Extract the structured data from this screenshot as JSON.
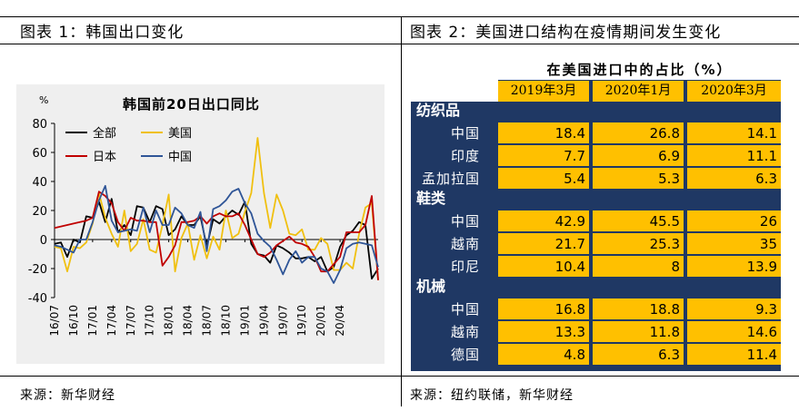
{
  "left_panel": {
    "header": "图表 1：韩国出口变化",
    "source": "来源：新华财经"
  },
  "right_panel": {
    "header": "图表 2：美国进口结构在疫情期间发生变化",
    "source": "来源：纽约联储，新华财经"
  },
  "chart_data": {
    "type": "line",
    "title": "韩国前20日出口同比",
    "yunit": "%",
    "ylim": [
      -40,
      80
    ],
    "yticks": [
      -40,
      -20,
      0,
      20,
      40,
      60,
      80
    ],
    "xtick_labels": [
      "16/07",
      "16/10",
      "17/01",
      "17/04",
      "17/07",
      "17/10",
      "18/01",
      "18/04",
      "18/07",
      "18/10",
      "19/01",
      "19/04",
      "19/07",
      "19/10",
      "20/01",
      "20/04"
    ],
    "legend_placement": "top-left",
    "grid": false,
    "x_start": "2016-07",
    "x_end": "2020-05",
    "series": [
      {
        "name": "全部",
        "color": "#000000",
        "values": [
          -3,
          -2,
          -12,
          0,
          -2,
          16,
          15,
          26,
          12,
          28,
          5,
          10,
          3,
          23,
          22,
          12,
          23,
          21,
          3,
          7,
          16,
          10,
          10,
          16,
          -5,
          14,
          11,
          16,
          20,
          17,
          26,
          -3,
          -10,
          -11,
          -16,
          -4,
          -6,
          -9,
          -13,
          -13,
          -12,
          -15,
          -12,
          -22,
          -19,
          -5,
          3,
          6,
          12,
          10,
          -27,
          -20
        ]
      },
      {
        "name": "美国",
        "color": "#f0c010",
        "values": [
          -5,
          -6,
          -22,
          -5,
          -6,
          -2,
          11,
          32,
          15,
          4,
          -5,
          20,
          -8,
          -3,
          14,
          -7,
          -9,
          10,
          31,
          -22,
          1,
          11,
          -14,
          3,
          -13,
          2,
          -7,
          20,
          1,
          4,
          19,
          32,
          70,
          32,
          8,
          31,
          20,
          4,
          3,
          7,
          -7,
          -7,
          1,
          -3,
          -21,
          -21,
          -16,
          -20,
          4,
          22,
          25,
          -28
        ]
      },
      {
        "name": "日本",
        "color": "#c00000",
        "values": [
          8,
          9,
          10,
          11,
          12,
          13,
          15,
          33,
          30,
          25,
          12,
          6,
          15,
          13,
          13,
          12,
          12,
          -18,
          -12,
          -4,
          12,
          12,
          13,
          16,
          11,
          16,
          18,
          16,
          16,
          18,
          10,
          0,
          -10,
          -12,
          -9,
          -4,
          -1,
          2,
          -2,
          -3,
          -5,
          -12,
          -22,
          -22,
          -17,
          -12,
          5,
          5,
          5,
          10,
          30,
          -28
        ]
      },
      {
        "name": "中国",
        "color": "#2f5597",
        "values": [
          -4,
          -5,
          -7,
          -9,
          0,
          0,
          12,
          27,
          37,
          13,
          5,
          6,
          7,
          6,
          22,
          5,
          20,
          10,
          10,
          22,
          18,
          10,
          8,
          19,
          -8,
          21,
          23,
          27,
          33,
          35,
          25,
          18,
          4,
          -1,
          -5,
          -14,
          -24,
          -14,
          -8,
          -16,
          -12,
          -12,
          -20,
          -22,
          -30,
          -21,
          -6,
          -3,
          -2,
          -3,
          -4,
          -19
        ]
      }
    ]
  },
  "table": {
    "group_header": "在美国进口中的占比（%）",
    "columns": [
      "2019年3月",
      "2020年1月",
      "2020年3月"
    ],
    "sections": [
      {
        "name": "纺织品",
        "rows": [
          {
            "country": "中国",
            "values": [
              "18.4",
              "26.8",
              "14.1"
            ]
          },
          {
            "country": "印度",
            "values": [
              "7.7",
              "6.9",
              "11.1"
            ]
          },
          {
            "country": "孟加拉国",
            "values": [
              "5.4",
              "5.3",
              "6.3"
            ]
          }
        ]
      },
      {
        "name": "鞋类",
        "rows": [
          {
            "country": "中国",
            "values": [
              "42.9",
              "45.5",
              "26"
            ]
          },
          {
            "country": "越南",
            "values": [
              "21.7",
              "25.3",
              "35"
            ]
          },
          {
            "country": "印尼",
            "values": [
              "10.4",
              "8",
              "13.9"
            ]
          }
        ]
      },
      {
        "name": "机械",
        "rows": [
          {
            "country": "中国",
            "values": [
              "16.8",
              "18.8",
              "9.3"
            ]
          },
          {
            "country": "越南",
            "values": [
              "13.3",
              "11.8",
              "14.6"
            ]
          },
          {
            "country": "德国",
            "values": [
              "4.8",
              "6.3",
              "11.4"
            ]
          }
        ]
      }
    ]
  }
}
